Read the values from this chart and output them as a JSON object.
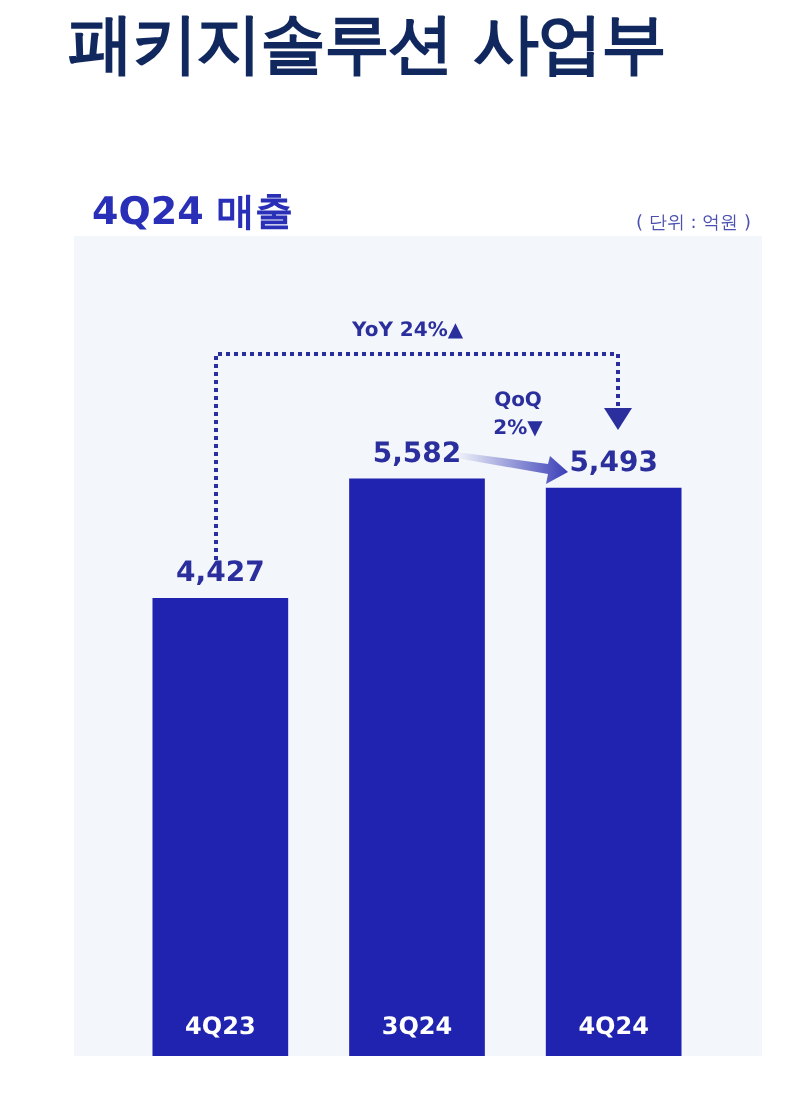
{
  "chart_data": {
    "type": "bar",
    "title": "패키지솔루션 사업부",
    "subtitle": "4Q24 매출",
    "categories": [
      "4Q23",
      "3Q24",
      "4Q24"
    ],
    "values": [
      4427,
      5582,
      5493
    ],
    "value_labels": [
      "4,427",
      "5,582",
      "5,493"
    ],
    "color": "#1f23b0",
    "grid": false,
    "legend": false,
    "annotations": [
      "( 단위 : 억원 )",
      "YoY 24%▲",
      "QoQ 2%▼"
    ]
  }
}
